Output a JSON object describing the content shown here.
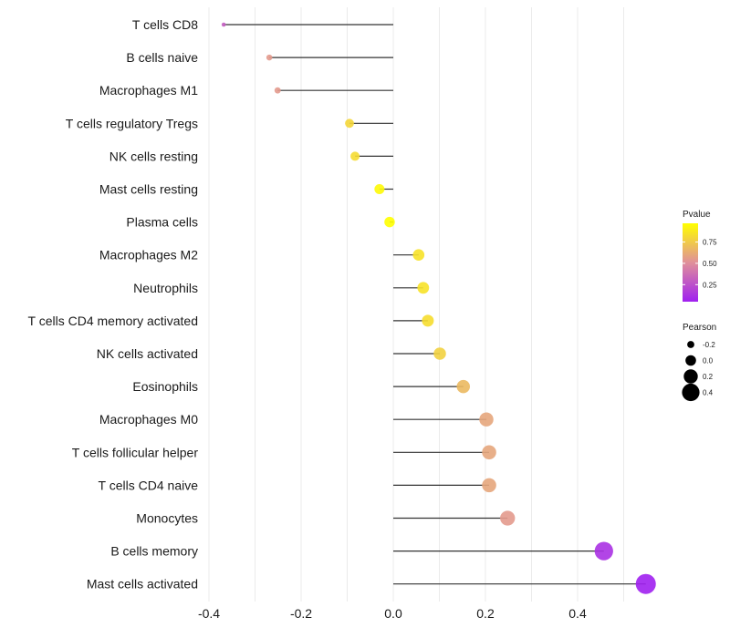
{
  "chart_data": {
    "type": "lollipop",
    "title": "",
    "xlabel": "",
    "ylabel": "",
    "xlim": [
      -0.4,
      0.55
    ],
    "x_ticks": [
      -0.4,
      -0.2,
      0.0,
      0.2,
      0.4
    ],
    "x_tick_labels": [
      "-0.4",
      "-0.2",
      "0.0",
      "0.2",
      "0.4"
    ],
    "grid": true,
    "categories": [
      "T cells CD8",
      "B cells naive",
      "Macrophages M1",
      "T cells regulatory  Tregs ",
      "NK cells resting",
      "Mast cells resting",
      "Plasma cells",
      "Macrophages M2",
      "Neutrophils",
      "T cells CD4 memory activated",
      "NK cells activated",
      "Eosinophils",
      "Macrophages M0",
      "T cells follicular helper",
      "T cells CD4 naive",
      "Monocytes",
      "B cells memory",
      "Mast cells activated"
    ],
    "pearson": [
      -0.368,
      -0.269,
      -0.251,
      -0.095,
      -0.083,
      -0.03,
      -0.008,
      0.055,
      0.065,
      0.075,
      0.101,
      0.152,
      0.202,
      0.208,
      0.208,
      0.248,
      0.457,
      0.548
    ],
    "pvalue": [
      0.3,
      0.55,
      0.55,
      0.8,
      0.82,
      0.95,
      0.97,
      0.85,
      0.85,
      0.83,
      0.78,
      0.68,
      0.6,
      0.6,
      0.6,
      0.55,
      0.12,
      0.05
    ],
    "legend": {
      "color": {
        "title": "Pvalue",
        "labels": [
          "0.75",
          "0.50",
          "0.25"
        ],
        "values": [
          0.75,
          0.5,
          0.25
        ],
        "range": [
          0.05,
          0.97
        ],
        "low_color": "#a020f0",
        "mid_color": "#e0909a",
        "high_color": "#ffff00"
      },
      "size": {
        "title": "Pearson",
        "labels": [
          "-0.2",
          "0.0",
          "0.2",
          "0.4"
        ],
        "values": [
          -0.2,
          0.0,
          0.2,
          0.4
        ]
      },
      "placement": "right"
    }
  }
}
